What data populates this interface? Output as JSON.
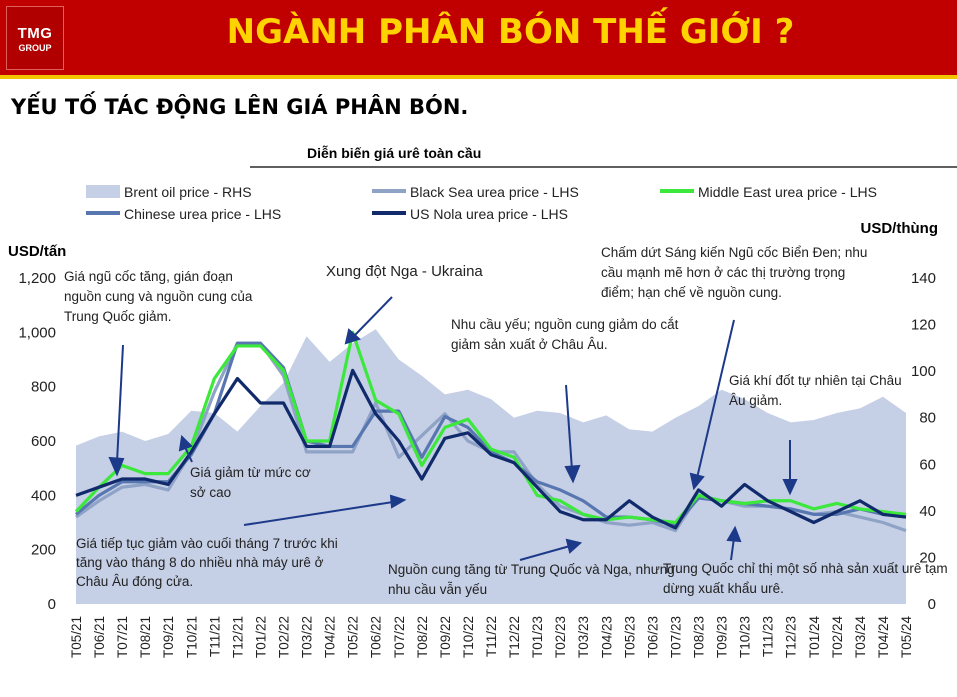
{
  "header": {
    "logo_line1": "TMG",
    "logo_line2": "GROUP",
    "title": "NGÀNH PHÂN BÓN THẾ GIỚI ?"
  },
  "subtitle": "YẾU TỐ TÁC ĐỘNG LÊN GIÁ PHÂN BÓN.",
  "chart_data": {
    "type": "line",
    "title": "Diễn biến giá urê toàn cầu",
    "ylabel": "USD/tấn",
    "y2label": "USD/thùng",
    "ylim": [
      0,
      1200
    ],
    "y2lim": [
      0,
      140
    ],
    "yticks": [
      "0",
      "200",
      "400",
      "600",
      "800",
      "1,000",
      "1,200"
    ],
    "y2ticks": [
      "0",
      "20",
      "40",
      "60",
      "80",
      "100",
      "120",
      "140"
    ],
    "categories": [
      "T05/21",
      "T06/21",
      "T07/21",
      "T08/21",
      "T09/21",
      "T10/21",
      "T11/21",
      "T12/21",
      "T01/22",
      "T02/22",
      "T03/22",
      "T04/22",
      "T05/22",
      "T06/22",
      "T07/22",
      "T08/22",
      "T09/22",
      "T10/22",
      "T11/22",
      "T12/22",
      "T01/23",
      "T02/23",
      "T03/23",
      "T04/23",
      "T05/23",
      "T06/23",
      "T07/23",
      "T08/23",
      "T09/23",
      "T10/23",
      "T11/23",
      "T12/23",
      "T01/24",
      "T02/24",
      "T03/24",
      "T04/24",
      "T05/24"
    ],
    "legend": [
      "Brent oil price - RHS",
      "Black Sea urea price - LHS",
      "Middle East urea price - LHS",
      "Chinese urea price - LHS",
      "US Nola urea price - LHS"
    ],
    "colors": {
      "brent": "#c5cfe5",
      "black_sea": "#8fa3c7",
      "middle_east": "#3ce83c",
      "chinese": "#5877b0",
      "us_nola": "#102a6b"
    },
    "series": [
      {
        "name": "Brent oil price - RHS",
        "axis": "right",
        "values": [
          68,
          72,
          74,
          70,
          73,
          83,
          82,
          74,
          85,
          95,
          115,
          104,
          112,
          118,
          105,
          98,
          90,
          92,
          88,
          80,
          83,
          82,
          78,
          81,
          75,
          74,
          80,
          85,
          92,
          88,
          82,
          78,
          79,
          82,
          84,
          89,
          82
        ]
      },
      {
        "name": "Black Sea urea price - LHS",
        "axis": "left",
        "values": [
          320,
          380,
          430,
          440,
          420,
          560,
          780,
          960,
          960,
          840,
          560,
          560,
          560,
          740,
          540,
          620,
          700,
          600,
          560,
          560,
          440,
          360,
          330,
          300,
          290,
          300,
          270,
          400,
          380,
          360,
          360,
          350,
          330,
          340,
          320,
          300,
          270
        ]
      },
      {
        "name": "Middle East urea price - LHS",
        "axis": "left",
        "values": [
          340,
          430,
          510,
          480,
          480,
          580,
          830,
          950,
          950,
          860,
          600,
          600,
          1000,
          750,
          700,
          510,
          650,
          680,
          570,
          540,
          400,
          380,
          330,
          310,
          320,
          310,
          300,
          400,
          380,
          370,
          380,
          380,
          350,
          370,
          350,
          340,
          330
        ]
      },
      {
        "name": "Chinese urea price - LHS",
        "axis": "left",
        "values": [
          330,
          400,
          450,
          450,
          450,
          550,
          700,
          960,
          960,
          870,
          600,
          580,
          580,
          710,
          710,
          540,
          690,
          650,
          560,
          520,
          450,
          420,
          380,
          320,
          320,
          310,
          290,
          390,
          380,
          370,
          360,
          350,
          330,
          330,
          350,
          330,
          320
        ]
      },
      {
        "name": "US Nola urea price - LHS",
        "axis": "left",
        "values": [
          400,
          430,
          460,
          460,
          440,
          560,
          700,
          830,
          740,
          740,
          580,
          580,
          860,
          700,
          600,
          460,
          610,
          630,
          550,
          520,
          430,
          340,
          310,
          310,
          380,
          320,
          280,
          420,
          360,
          440,
          380,
          340,
          300,
          340,
          380,
          330,
          320
        ]
      }
    ],
    "annotations": [
      "Giá ngũ cốc tăng, gián đoạn nguồn cung và nguồn cung của Trung Quốc giảm.",
      "Xung đột Nga - Ukraina",
      "Nhu cầu yếu; nguồn cung giảm do cắt giảm sản xuất ở Châu Âu.",
      "Chấm dứt Sáng kiến Ngũ cốc Biển Đen; nhu cầu mạnh mẽ hơn ở các thị trường trọng điểm; hạn chế về nguồn cung.",
      "Giá khí đốt tự nhiên tại Châu Âu giảm.",
      "Giá giảm từ mức cơ sở cao",
      "Giá tiếp tục giảm vào cuối tháng 7 trước khi tăng vào tháng 8 do nhiều nhà máy urê ở Châu Âu đóng cửa.",
      "Nguồn cung tăng từ Trung Quốc và Nga, nhưng nhu cầu vẫn yếu",
      "Trung Quốc chỉ thị một số nhà sản xuất urê tạm dừng xuất khẩu urê."
    ]
  }
}
